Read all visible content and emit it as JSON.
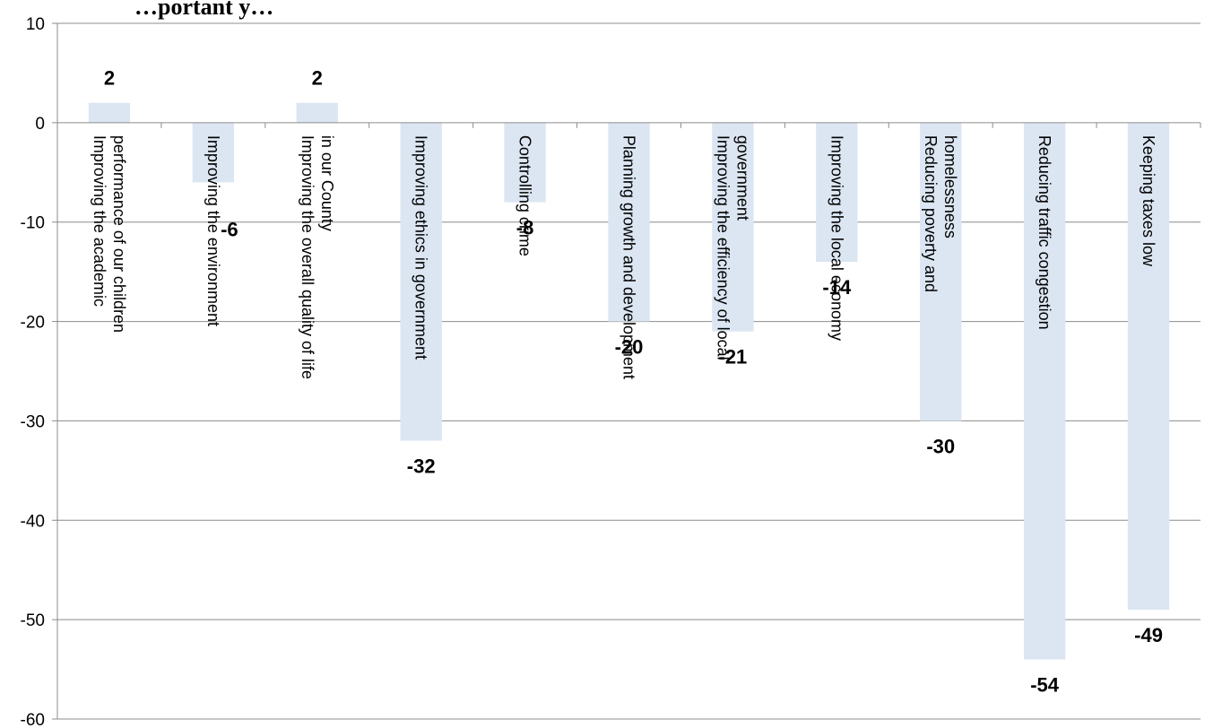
{
  "chart_data": {
    "type": "bar",
    "title": "…portant y…",
    "categories": [
      "Improving the academic performance of our children",
      "Improving the environment",
      "Improving the overall quality of life in our County",
      "Improving ethics in government",
      "Controlling crime",
      "Planning growth and development",
      "Improving the efficiency of local government",
      "Improving the local economy",
      "Reducing poverty and homelessness",
      "Reducing traffic congestion",
      "Keeping taxes low"
    ],
    "category_lines": [
      [
        "Improving the academic",
        "performance of our children"
      ],
      [
        "Improving the environment"
      ],
      [
        "Improving the overall quality of life",
        "in our County"
      ],
      [
        "Improving ethics in government"
      ],
      [
        "Controlling crime"
      ],
      [
        "Planning growth and development"
      ],
      [
        "Improving the efficiency of local",
        "government"
      ],
      [
        "Improving the local economy"
      ],
      [
        "Reducing poverty and",
        "homelessness"
      ],
      [
        "Reducing traffic congestion"
      ],
      [
        "Keeping taxes low"
      ]
    ],
    "values": [
      2,
      -6,
      2,
      -32,
      -8,
      -20,
      -21,
      -14,
      -30,
      -54,
      -49
    ],
    "data_labels": [
      "2",
      "-6",
      "2",
      "-32",
      "-8",
      "-20",
      "-21",
      "-14",
      "-30",
      "-54",
      "-49"
    ],
    "ylim": [
      -60,
      10
    ],
    "yticks": [
      10,
      0,
      -10,
      -20,
      -30,
      -40,
      -50,
      -60
    ],
    "ytick_labels": [
      "10",
      "0",
      "-10",
      "-20",
      "-30",
      "-40",
      "-50",
      "-60"
    ],
    "xlabel": "",
    "ylabel": "",
    "grid": true,
    "bar_color": "#dce6f2",
    "grid_color": "#8c8c8c"
  }
}
